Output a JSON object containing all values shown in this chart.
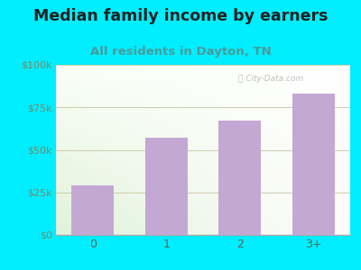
{
  "categories": [
    "0",
    "1",
    "2",
    "3+"
  ],
  "values": [
    29000,
    57000,
    67000,
    83000
  ],
  "bar_color": "#c4a8d4",
  "title": "Median family income by earners",
  "subtitle": "All residents in Dayton, TN",
  "title_fontsize": 12.5,
  "subtitle_fontsize": 9.5,
  "title_color": "#222222",
  "subtitle_color": "#4a9a9a",
  "outer_bg": "#00eeff",
  "yticks": [
    0,
    25000,
    50000,
    75000,
    100000
  ],
  "ytick_labels": [
    "$0",
    "$25k",
    "$50k",
    "$75k",
    "$100k"
  ],
  "ylim": [
    0,
    100000
  ],
  "tick_color": "#778866",
  "grid_color": "#ccccaa",
  "xtick_color": "#556655"
}
